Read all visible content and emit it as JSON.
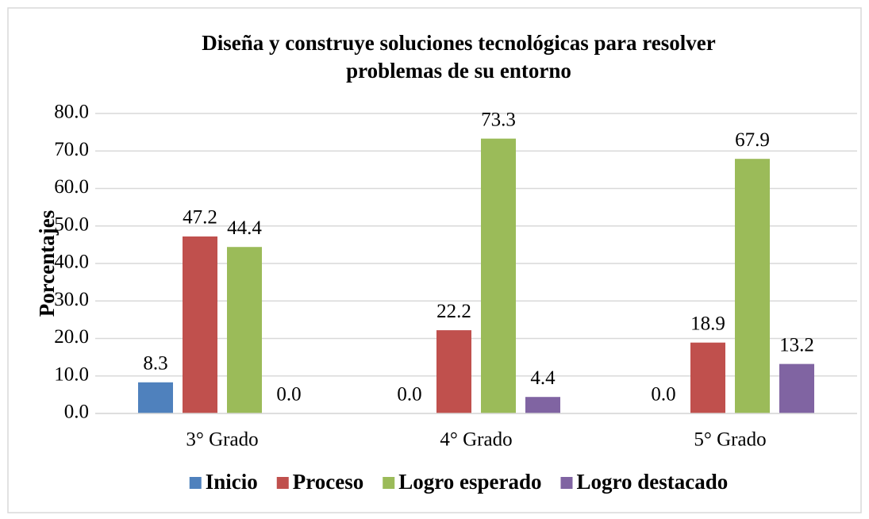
{
  "chart_data": {
    "type": "bar",
    "title": [
      "Diseña y construye soluciones tecnológicas para resolver",
      "problemas de su entorno"
    ],
    "y_axis_label": "Porcentajes",
    "categories": [
      "3° Grado",
      "4° Grado",
      "5° Grado"
    ],
    "series": [
      {
        "name": "Inicio",
        "color": "#4f81bd",
        "values": [
          8.3,
          0,
          0
        ],
        "value_labels": [
          "8.3",
          "0.0",
          "0.0"
        ]
      },
      {
        "name": "Proceso",
        "color": "#c0504d",
        "values": [
          47.2,
          22.2,
          18.9
        ],
        "value_labels": [
          "47.2",
          "22.2",
          "18.9"
        ]
      },
      {
        "name": "Logro esperado",
        "color": "#9bbb59",
        "values": [
          44.4,
          73.3,
          67.9
        ],
        "value_labels": [
          "44.4",
          "73.3",
          "67.9"
        ]
      },
      {
        "name": "Logro destacado",
        "color": "#8064a2",
        "values": [
          0,
          4.4,
          13.2
        ],
        "value_labels": [
          "0.0",
          "4.4",
          "13.2"
        ]
      }
    ],
    "ylim": [
      0,
      80
    ],
    "yticks": [
      {
        "value": 0,
        "label": "0.0"
      },
      {
        "value": 10,
        "label": "10.0"
      },
      {
        "value": 20,
        "label": "20.0"
      },
      {
        "value": 30,
        "label": "30.0"
      },
      {
        "value": 40,
        "label": "40.0"
      },
      {
        "value": 50,
        "label": "50.0"
      },
      {
        "value": 60,
        "label": "60.0"
      },
      {
        "value": 70,
        "label": "70.0"
      },
      {
        "value": 80,
        "label": "80.0"
      }
    ],
    "grid": true,
    "legend": "bottom"
  }
}
